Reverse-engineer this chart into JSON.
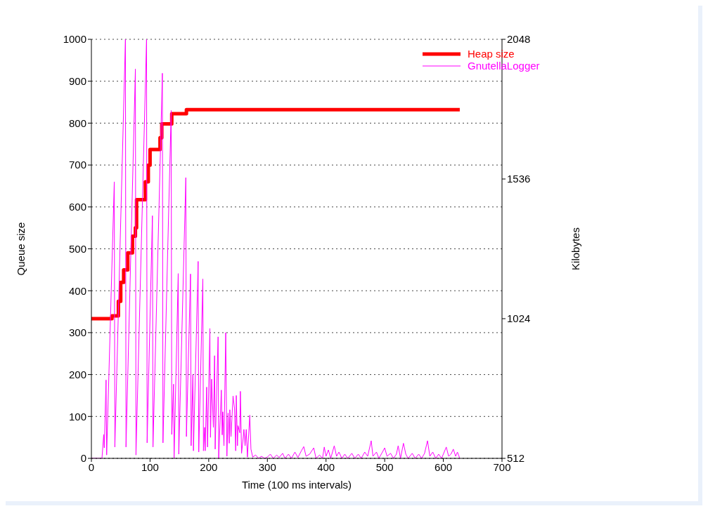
{
  "chart_data": {
    "type": "line",
    "xlabel": "Time (100 ms intervals)",
    "ylabel": "Queue size",
    "y2label": "Kilobytes",
    "xlim": [
      0,
      700
    ],
    "xticks": [
      0,
      100,
      200,
      300,
      400,
      500,
      600,
      700
    ],
    "ylim": [
      0,
      1000
    ],
    "yticks": [
      0,
      100,
      200,
      300,
      400,
      500,
      600,
      700,
      800,
      900,
      1000
    ],
    "y2lim": [
      512,
      2048
    ],
    "y2ticks": [
      512,
      1024,
      1536,
      2048
    ],
    "grid": "y",
    "legend": "top right",
    "marker": "none",
    "line_style": "solid",
    "series": [
      {
        "name": "Heap size",
        "type": "step",
        "axis": "y2",
        "color": "#ff0000",
        "x": [
          0,
          35,
          46,
          50,
          55,
          62,
          70,
          75,
          77,
          92,
          97,
          100,
          117,
          120,
          137,
          162,
          628
        ],
        "values": [
          1024,
          1034,
          1088,
          1157,
          1203,
          1265,
          1326,
          1357,
          1460,
          1526,
          1587,
          1644,
          1687,
          1738,
          1775,
          1790,
          1790
        ]
      },
      {
        "name": "GnutellaLogger",
        "color": "#ff00ff",
        "x": [
          0,
          18,
          21,
          22,
          25,
          26,
          39,
          40,
          58,
          59,
          75,
          76,
          94,
          95,
          104,
          105,
          121,
          122,
          136,
          137,
          140,
          141,
          148,
          149,
          161,
          162,
          169,
          170,
          173,
          174,
          182,
          183,
          190,
          191,
          193,
          194,
          196.5,
          198,
          202,
          203,
          205,
          208,
          210,
          211,
          216,
          217,
          221.5,
          223,
          224,
          226,
          229,
          231,
          233,
          235,
          236,
          238,
          241.5,
          244,
          246,
          247,
          249,
          250,
          253,
          254,
          256,
          259,
          260,
          262,
          264,
          266,
          270,
          272,
          275,
          280,
          285,
          290,
          295,
          300,
          305,
          310,
          316,
          320,
          326,
          330,
          336,
          341,
          347,
          352,
          358,
          362,
          366,
          372,
          379,
          383,
          389,
          394,
          397,
          400,
          404,
          408,
          414,
          418,
          422,
          427,
          432,
          437,
          444,
          449,
          455,
          460,
          466,
          471,
          477,
          480,
          486,
          490,
          495,
          500,
          504,
          510,
          515,
          520,
          523,
          527,
          532,
          536,
          540,
          547,
          552,
          558,
          563,
          568,
          573,
          577,
          582,
          587,
          592,
          597,
          605,
          609,
          613,
          617,
          621,
          624,
          628
        ],
        "values": [
          0,
          0,
          57,
          25,
          187,
          8,
          660,
          27,
          1000,
          27,
          929,
          8,
          1000,
          37,
          579,
          27,
          919,
          37,
          830,
          57,
          177,
          0,
          441,
          10,
          670,
          52,
          440,
          30,
          200,
          18,
          470,
          15,
          428,
          18,
          74,
          18,
          170,
          27,
          310,
          50,
          189,
          74,
          245,
          22,
          290,
          0,
          163,
          56,
          111,
          30,
          300,
          5,
          108,
          36,
          116,
          52,
          149,
          119,
          18,
          150,
          30,
          78,
          61,
          160,
          12,
          52,
          69,
          30,
          69,
          3,
          103,
          22,
          3,
          8,
          0,
          5,
          0,
          3,
          10,
          0,
          8,
          2,
          12,
          0,
          10,
          0,
          15,
          2,
          18,
          28,
          5,
          10,
          25,
          0,
          8,
          0,
          27,
          5,
          20,
          0,
          30,
          5,
          15,
          0,
          10,
          0,
          12,
          0,
          10,
          0,
          15,
          5,
          42,
          5,
          15,
          0,
          12,
          25,
          5,
          12,
          0,
          10,
          30,
          0,
          36,
          10,
          0,
          12,
          0,
          10,
          0,
          12,
          42,
          5,
          15,
          0,
          10,
          0,
          27,
          5,
          10,
          22,
          5,
          15,
          0
        ]
      }
    ]
  }
}
